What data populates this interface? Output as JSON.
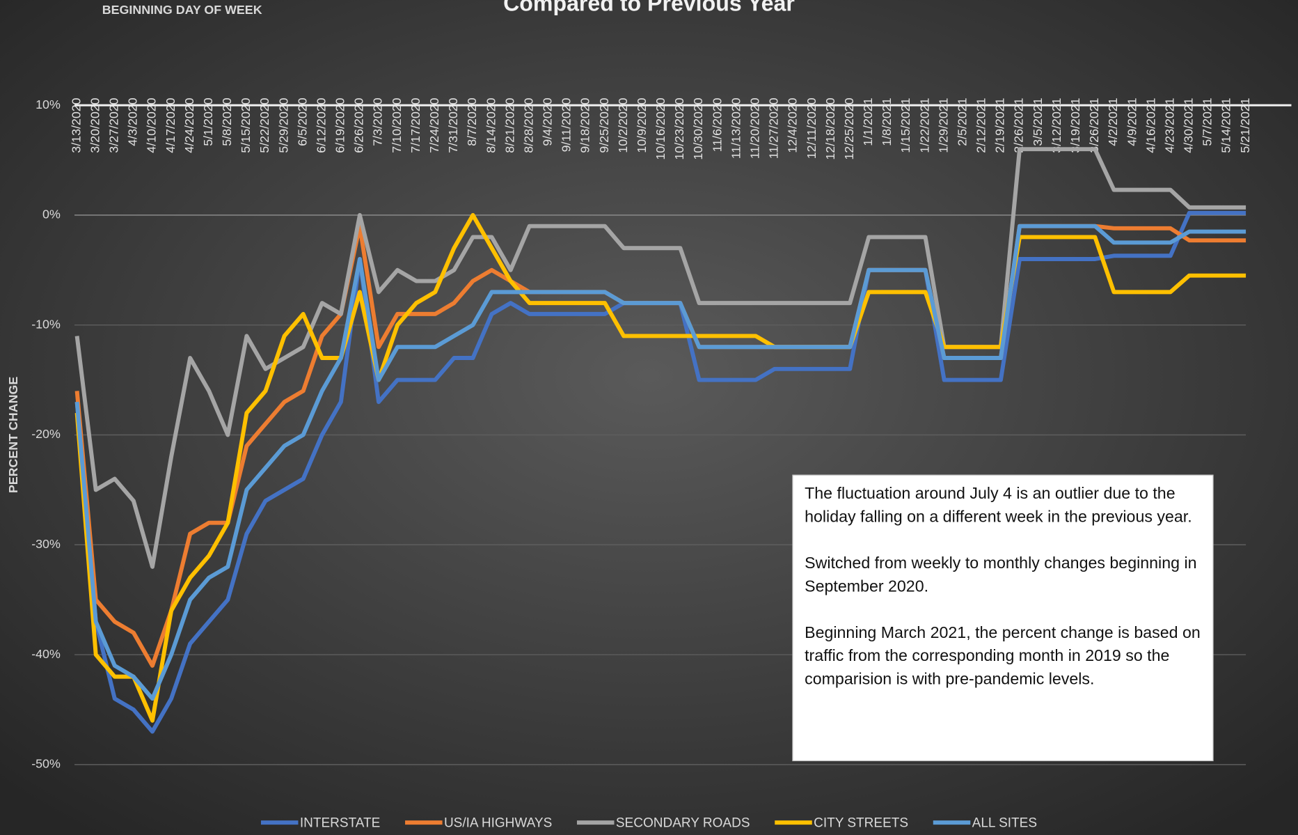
{
  "chart_data": {
    "type": "line",
    "title": "Compared to Previous Year",
    "x_label": "BEGINNING DAY OF WEEK",
    "y_label": "PERCENT CHANGE",
    "categories": [
      "3/13/2020",
      "3/20/2020",
      "3/27/2020",
      "4/3/2020",
      "4/10/2020",
      "4/17/2020",
      "4/24/2020",
      "5/1/2020",
      "5/8/2020",
      "5/15/2020",
      "5/22/2020",
      "5/29/2020",
      "6/5/2020",
      "6/12/2020",
      "6/19/2020",
      "6/26/2020",
      "7/3/2020",
      "7/10/2020",
      "7/17/2020",
      "7/24/2020",
      "7/31/2020",
      "8/7/2020",
      "8/14/2020",
      "8/21/2020",
      "8/28/2020",
      "9/4/2020",
      "9/11/2020",
      "9/18/2020",
      "9/25/2020",
      "10/2/2020",
      "10/9/2020",
      "10/16/2020",
      "10/23/2020",
      "10/30/2020",
      "11/6/2020",
      "11/13/2020",
      "11/20/2020",
      "11/27/2020",
      "12/4/2020",
      "12/11/2020",
      "12/18/2020",
      "12/25/2020",
      "1/1/2021",
      "1/8/2021",
      "1/15/2021",
      "1/22/2021",
      "1/29/2021",
      "2/5/2021",
      "2/12/2021",
      "2/19/2021",
      "2/26/2021",
      "3/5/2021",
      "3/12/2021",
      "3/19/2021",
      "3/26/2021",
      "4/2/2021",
      "4/9/2021",
      "4/16/2021",
      "4/23/2021",
      "4/30/2021",
      "5/7/2021",
      "5/14/2021",
      "5/21/2021"
    ],
    "series": [
      {
        "name": "INTERSTATE",
        "color": "#4472c4",
        "values": [
          -17,
          -37,
          -44,
          -45,
          -47,
          -44,
          -39,
          -37,
          -35,
          -29,
          -26,
          -25,
          -24,
          -20,
          -17,
          -4,
          -17,
          -15,
          -15,
          -15,
          -13,
          -13,
          -9,
          -8,
          -9,
          -9,
          -9,
          -9,
          -9,
          -8,
          -8,
          -8,
          -8,
          -15,
          -15,
          -15,
          -15,
          -14,
          -14,
          -14,
          -14,
          -14,
          -5,
          -5,
          -5,
          -5,
          -15,
          -15,
          -15,
          -15,
          -4,
          -4,
          -4,
          -4,
          -4,
          -3.7,
          -3.7,
          -3.7,
          -3.7,
          0.2,
          0.2,
          0.2,
          0.2
        ]
      },
      {
        "name": "US/IA HIGHWAYS",
        "color": "#ed7d31",
        "values": [
          -16,
          -35,
          -37,
          -38,
          -41,
          -36,
          -29,
          -28,
          -28,
          -21,
          -19,
          -17,
          -16,
          -11,
          -9,
          -1,
          -12,
          -9,
          -9,
          -9,
          -8,
          -6,
          -5,
          -6,
          -7,
          -7,
          -7,
          -7,
          -7,
          -8,
          -8,
          -8,
          -8,
          -12,
          -12,
          -12,
          -12,
          -12,
          -12,
          -12,
          -12,
          -12,
          -5,
          -5,
          -5,
          -5,
          -13,
          -13,
          -13,
          -13,
          -1,
          -1,
          -1,
          -1,
          -1,
          -1.2,
          -1.2,
          -1.2,
          -1.2,
          -2.3,
          -2.3,
          -2.3,
          -2.3
        ]
      },
      {
        "name": "SECONDARY ROADS",
        "color": "#a5a5a5",
        "values": [
          -11,
          -25,
          -24,
          -26,
          -32,
          -22,
          -13,
          -16,
          -20,
          -11,
          -14,
          -13,
          -12,
          -8,
          -9,
          0,
          -7,
          -5,
          -6,
          -6,
          -5,
          -2,
          -2,
          -5,
          -1,
          -1,
          -1,
          -1,
          -1,
          -3,
          -3,
          -3,
          -3,
          -8,
          -8,
          -8,
          -8,
          -8,
          -8,
          -8,
          -8,
          -8,
          -2,
          -2,
          -2,
          -2,
          -12,
          -12,
          -12,
          -12,
          6,
          6,
          6,
          6,
          6,
          2.3,
          2.3,
          2.3,
          2.3,
          0.7,
          0.7,
          0.7,
          0.7
        ]
      },
      {
        "name": "CITY STREETS",
        "color": "#ffc000",
        "values": [
          -18,
          -40,
          -42,
          -42,
          -46,
          -36,
          -33,
          -31,
          -28,
          -18,
          -16,
          -11,
          -9,
          -13,
          -13,
          -7,
          -15,
          -10,
          -8,
          -7,
          -3,
          0,
          -3,
          -6,
          -8,
          -8,
          -8,
          -8,
          -8,
          -11,
          -11,
          -11,
          -11,
          -11,
          -11,
          -11,
          -11,
          -12,
          -12,
          -12,
          -12,
          -12,
          -7,
          -7,
          -7,
          -7,
          -12,
          -12,
          -12,
          -12,
          -2,
          -2,
          -2,
          -2,
          -2,
          -7,
          -7,
          -7,
          -7,
          -5.5,
          -5.5,
          -5.5,
          -5.5
        ]
      },
      {
        "name": "ALL SITES",
        "color": "#5b9bd5",
        "values": [
          -17,
          -37,
          -41,
          -42,
          -44,
          -40,
          -35,
          -33,
          -32,
          -25,
          -23,
          -21,
          -20,
          -16,
          -13,
          -4,
          -15,
          -12,
          -12,
          -12,
          -11,
          -10,
          -7,
          -7,
          -7,
          -7,
          -7,
          -7,
          -7,
          -8,
          -8,
          -8,
          -8,
          -12,
          -12,
          -12,
          -12,
          -12,
          -12,
          -12,
          -12,
          -12,
          -5,
          -5,
          -5,
          -5,
          -13,
          -13,
          -13,
          -13,
          -1,
          -1,
          -1,
          -1,
          -1,
          -2.5,
          -2.5,
          -2.5,
          -2.5,
          -1.5,
          -1.5,
          -1.5,
          -1.5
        ]
      }
    ],
    "ylim": [
      -50,
      10
    ],
    "yticks": [
      {
        "value": -50,
        "label": "-50%"
      },
      {
        "value": -40,
        "label": "-40%"
      },
      {
        "value": -30,
        "label": "-30%"
      },
      {
        "value": -20,
        "label": "-20%"
      },
      {
        "value": -10,
        "label": "-10%"
      },
      {
        "value": 0,
        "label": "0%"
      },
      {
        "value": 10,
        "label": "10%"
      }
    ],
    "grid": true,
    "legend": "bottom",
    "annotations": [
      "The fluctuation around July 4 is an outlier due to the holiday falling on a different week in the previous year.",
      "Switched from weekly to monthly changes beginning in September 2020.",
      "Beginning March 2021, the percent change is based on traffic from the corresponding month in 2019 so the comparision is with pre-pandemic levels."
    ]
  }
}
